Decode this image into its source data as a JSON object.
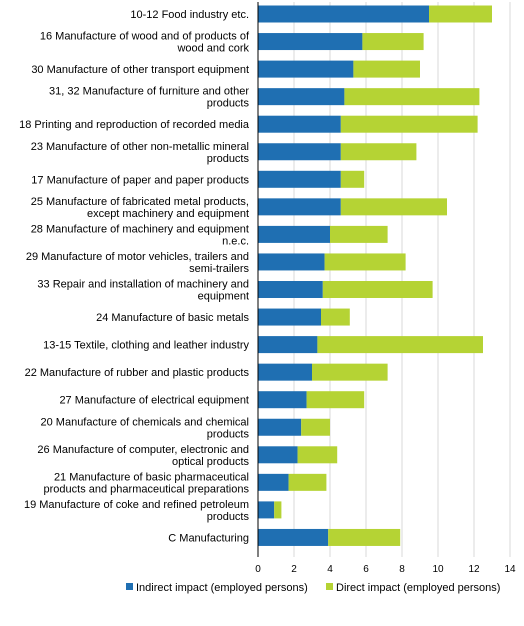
{
  "chart_data": {
    "type": "bar",
    "orientation": "horizontal",
    "stacked": true,
    "categories": [
      [
        "10-12 Food industry etc."
      ],
      [
        "16 Manufacture of wood and of products of",
        "wood and cork"
      ],
      [
        "30 Manufacture of other transport equipment"
      ],
      [
        "31, 32 Manufacture of furniture and other",
        "products"
      ],
      [
        "18 Printing and reproduction of recorded media"
      ],
      [
        "23 Manufacture of other non-metallic mineral",
        "products"
      ],
      [
        "17 Manufacture of paper and paper products"
      ],
      [
        "25 Manufacture of fabricated metal products,",
        "except machinery and equipment"
      ],
      [
        "28 Manufacture of machinery and equipment",
        "n.e.c."
      ],
      [
        "29 Manufacture of motor vehicles, trailers and",
        "semi-trailers"
      ],
      [
        "33 Repair and installation of machinery and",
        "equipment"
      ],
      [
        "24 Manufacture of basic metals"
      ],
      [
        "13-15 Textile, clothing and leather industry"
      ],
      [
        "22 Manufacture of rubber and plastic products"
      ],
      [
        "27 Manufacture of electrical equipment"
      ],
      [
        "20 Manufacture of chemicals and chemical",
        "products"
      ],
      [
        "26 Manufacture of computer, electronic and",
        "optical products"
      ],
      [
        "21 Manufacture of basic pharmaceutical",
        "products and pharmaceutical preparations"
      ],
      [
        "19 Manufacture of coke and refined petroleum",
        "products"
      ],
      [
        "C Manufacturing"
      ]
    ],
    "series": [
      {
        "name": "Indirect impact (employed persons)",
        "color": "#1f6fb2",
        "values": [
          9.5,
          5.8,
          5.3,
          4.8,
          4.6,
          4.6,
          4.6,
          4.6,
          4.0,
          3.7,
          3.6,
          3.5,
          3.3,
          3.0,
          2.7,
          2.4,
          2.2,
          1.7,
          0.9,
          3.9
        ]
      },
      {
        "name": "Direct impact (employed persons)",
        "color": "#b5d334",
        "values": [
          3.5,
          3.4,
          3.7,
          7.5,
          7.6,
          4.2,
          1.3,
          5.9,
          3.2,
          4.5,
          6.1,
          1.6,
          9.2,
          4.2,
          3.2,
          1.6,
          2.2,
          2.1,
          0.4,
          4.0
        ]
      }
    ],
    "xlim": [
      0,
      14
    ],
    "xticks": [
      0,
      2,
      4,
      6,
      8,
      10,
      12,
      14
    ],
    "title": "",
    "xlabel": "",
    "ylabel": "",
    "grid": "vertical",
    "gridColor": "#d9d9d9",
    "legend_position": "bottom"
  }
}
